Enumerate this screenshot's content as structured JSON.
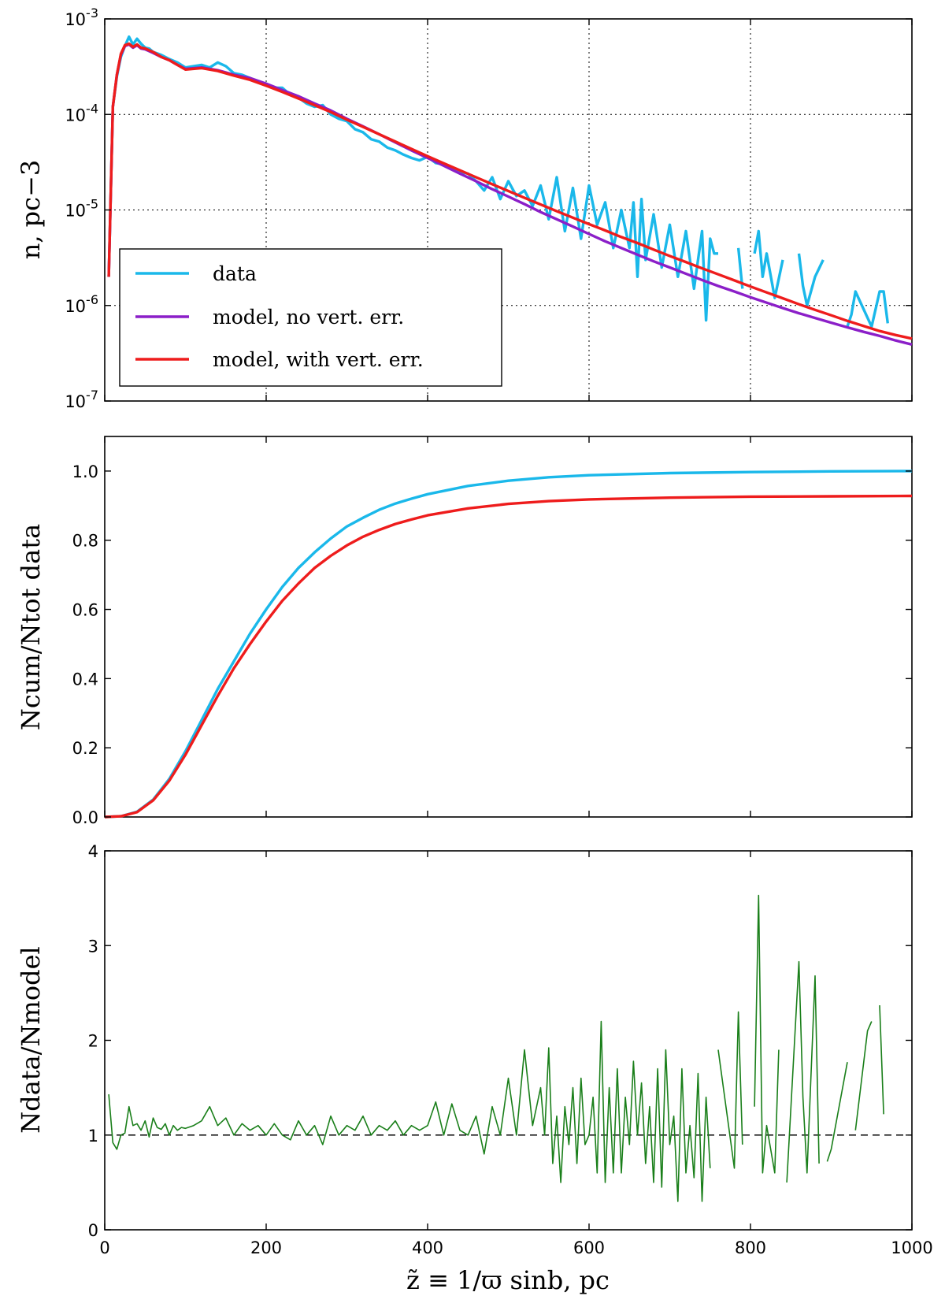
{
  "colors": {
    "data": "#1ab8ea",
    "model_no_err": "#8b1fc8",
    "model_with_err": "#ee1c1c",
    "ratio": "#1a7f1a",
    "reference": "#000000"
  },
  "shared_xlabel": "z̃ ≡ 1/ϖ sinb,  pc",
  "chart_data": [
    {
      "type": "line",
      "name": "density",
      "yscale": "log",
      "xlim": [
        0,
        1000
      ],
      "ylim": [
        1e-07,
        0.001
      ],
      "grid": true,
      "xticks": [
        0,
        200,
        400,
        600,
        800,
        1000
      ],
      "ytick_labels": [
        "10-3",
        "10-4",
        "10-5",
        "10-6",
        "10-7"
      ],
      "ytick_values": [
        0.001,
        0.0001,
        1e-05,
        1e-06,
        1e-07
      ],
      "ylabel": "n,  pc−3",
      "legend": {
        "location": "lower-left",
        "entries": [
          "data",
          "model,  no vert. err.",
          "model,  with vert. err."
        ]
      },
      "series": [
        {
          "name": "data",
          "x": [
            5,
            10,
            15,
            20,
            25,
            30,
            35,
            40,
            45,
            50,
            55,
            60,
            70,
            80,
            90,
            100,
            110,
            120,
            130,
            140,
            150,
            160,
            170,
            180,
            190,
            200,
            210,
            220,
            230,
            240,
            250,
            260,
            270,
            280,
            290,
            300,
            310,
            320,
            330,
            340,
            350,
            360,
            370,
            380,
            390,
            400,
            410,
            420,
            430,
            440,
            450,
            460,
            470,
            480,
            490,
            500,
            510,
            520,
            530,
            540,
            550,
            560,
            570,
            580,
            590,
            600,
            610,
            620,
            630,
            640,
            650,
            655,
            660,
            665,
            670,
            680,
            690,
            700,
            710,
            720,
            730,
            740,
            745,
            750,
            755,
            760,
            780,
            785,
            790,
            800,
            805,
            810,
            815,
            820,
            830,
            840,
            850,
            860,
            865,
            870,
            880,
            890,
            900,
            920,
            925,
            930,
            950,
            960,
            965,
            970
          ],
          "y": [
            2e-06,
            0.00012,
            0.00025,
            0.0004,
            0.00052,
            0.00065,
            0.00054,
            0.00062,
            0.00055,
            0.0005,
            0.00049,
            0.00045,
            0.00042,
            0.00038,
            0.00035,
            0.00031,
            0.00032,
            0.00033,
            0.00031,
            0.00035,
            0.00032,
            0.00027,
            0.00026,
            0.00024,
            0.00022,
            0.00021,
            0.00019,
            0.00019,
            0.00016,
            0.00015,
            0.00013,
            0.00012,
            0.000125,
            0.0001,
            9e-05,
            8.5e-05,
            7e-05,
            6.5e-05,
            5.5e-05,
            5.2e-05,
            4.5e-05,
            4.2e-05,
            3.8e-05,
            3.5e-05,
            3.3e-05,
            3.6e-05,
            3.1e-05,
            3e-05,
            2.8e-05,
            2.5e-05,
            2.4e-05,
            2e-05,
            1.6e-05,
            2.2e-05,
            1.3e-05,
            2e-05,
            1.4e-05,
            1.6e-05,
            1.1e-05,
            1.8e-05,
            8e-06,
            2.2e-05,
            6e-06,
            1.7e-05,
            5e-06,
            1.8e-05,
            7e-06,
            1.2e-05,
            4e-06,
            1e-05,
            4e-06,
            1.2e-05,
            2e-06,
            1.3e-05,
            3e-06,
            9e-06,
            2.5e-06,
            7e-06,
            2e-06,
            6e-06,
            1.5e-06,
            6e-06,
            7e-07,
            5e-06,
            3.5e-06,
            3.5e-06,
            null,
            4e-06,
            1.5e-06,
            null,
            3.5e-06,
            6e-06,
            2e-06,
            3.5e-06,
            1.2e-06,
            3e-06,
            null,
            3.5e-06,
            1.6e-06,
            1e-06,
            2e-06,
            3e-06,
            null,
            6e-07,
            8e-07,
            1.4e-06,
            6e-07,
            1.4e-06,
            1.4e-06,
            6.5e-07
          ]
        },
        {
          "name": "model, no vert. err.",
          "x": [
            5,
            10,
            15,
            20,
            25,
            30,
            35,
            40,
            45,
            50,
            60,
            70,
            80,
            90,
            100,
            120,
            140,
            160,
            180,
            200,
            220,
            240,
            260,
            280,
            300,
            320,
            340,
            360,
            380,
            400,
            420,
            440,
            460,
            480,
            500,
            520,
            540,
            560,
            580,
            600,
            620,
            640,
            660,
            680,
            700,
            720,
            740,
            760,
            780,
            800,
            820,
            840,
            860,
            880,
            900,
            920,
            940,
            960,
            980,
            1000
          ],
          "y": [
            2e-06,
            0.00012,
            0.00026,
            0.00042,
            0.00052,
            0.00054,
            0.0005,
            0.00053,
            0.00049,
            0.00048,
            0.00044,
            0.0004,
            0.00037,
            0.00033,
            0.0003,
            0.00031,
            0.00029,
            0.00026,
            0.00024,
            0.00021,
            0.00018,
            0.000155,
            0.00013,
            0.00011,
            9e-05,
            7.5e-05,
            6.2e-05,
            5.1e-05,
            4.2e-05,
            3.5e-05,
            2.9e-05,
            2.4e-05,
            2e-05,
            1.65e-05,
            1.38e-05,
            1.15e-05,
            9.5e-06,
            8e-06,
            6.7e-06,
            5.6e-06,
            4.7e-06,
            4e-06,
            3.4e-06,
            2.9e-06,
            2.5e-06,
            2.15e-06,
            1.85e-06,
            1.6e-06,
            1.4e-06,
            1.22e-06,
            1.07e-06,
            9.4e-07,
            8.3e-07,
            7.4e-07,
            6.6e-07,
            5.9e-07,
            5.3e-07,
            4.8e-07,
            4.3e-07,
            3.9e-07
          ]
        },
        {
          "name": "model, with vert. err.",
          "x": [
            5,
            10,
            15,
            20,
            25,
            30,
            35,
            40,
            45,
            50,
            60,
            70,
            80,
            90,
            100,
            120,
            140,
            160,
            180,
            200,
            220,
            240,
            260,
            280,
            300,
            320,
            340,
            360,
            380,
            400,
            420,
            440,
            460,
            480,
            500,
            520,
            540,
            560,
            580,
            600,
            620,
            640,
            660,
            680,
            700,
            720,
            740,
            760,
            780,
            800,
            820,
            840,
            860,
            880,
            900,
            920,
            940,
            960,
            980,
            1000
          ],
          "y": [
            2e-06,
            0.00012,
            0.00026,
            0.00043,
            0.00053,
            0.00055,
            0.00051,
            0.00054,
            0.0005,
            0.00049,
            0.00045,
            0.0004,
            0.00037,
            0.00033,
            0.000295,
            0.000305,
            0.000285,
            0.000255,
            0.00023,
            0.0002,
            0.000172,
            0.000147,
            0.000125,
            0.000106,
            8.8e-05,
            7.4e-05,
            6.2e-05,
            5.2e-05,
            4.35e-05,
            3.65e-05,
            3.08e-05,
            2.6e-05,
            2.2e-05,
            1.86e-05,
            1.58e-05,
            1.34e-05,
            1.14e-05,
            9.7e-06,
            8.3e-06,
            7.1e-06,
            6.1e-06,
            5.2e-06,
            4.5e-06,
            3.85e-06,
            3.3e-06,
            2.85e-06,
            2.45e-06,
            2.12e-06,
            1.83e-06,
            1.58e-06,
            1.37e-06,
            1.19e-06,
            1.03e-06,
            9e-07,
            7.9e-07,
            6.9e-07,
            6.1e-07,
            5.4e-07,
            4.9e-07,
            4.5e-07
          ]
        }
      ]
    },
    {
      "type": "line",
      "name": "cumulative",
      "yscale": "linear",
      "xlim": [
        0,
        1000
      ],
      "ylim": [
        0,
        1.1
      ],
      "grid": false,
      "xticks": [
        0,
        200,
        400,
        600,
        800,
        1000
      ],
      "ytick_labels": [
        "0.0",
        "0.2",
        "0.4",
        "0.6",
        "0.8",
        "1.0"
      ],
      "ytick_values": [
        0,
        0.2,
        0.4,
        0.6,
        0.8,
        1.0
      ],
      "ylabel": "Ncum/Ntot data",
      "series": [
        {
          "name": "data",
          "x": [
            0,
            20,
            40,
            60,
            80,
            100,
            120,
            140,
            160,
            180,
            200,
            220,
            240,
            260,
            280,
            300,
            320,
            340,
            360,
            380,
            400,
            450,
            500,
            550,
            600,
            700,
            800,
            900,
            1000
          ],
          "y": [
            0,
            0.002,
            0.015,
            0.05,
            0.11,
            0.19,
            0.28,
            0.37,
            0.45,
            0.53,
            0.6,
            0.665,
            0.72,
            0.765,
            0.805,
            0.84,
            0.865,
            0.888,
            0.906,
            0.92,
            0.933,
            0.957,
            0.972,
            0.982,
            0.988,
            0.994,
            0.997,
            0.999,
            1.0
          ]
        },
        {
          "name": "model, with vert. err.",
          "x": [
            0,
            20,
            40,
            60,
            80,
            100,
            120,
            140,
            160,
            180,
            200,
            220,
            240,
            260,
            280,
            300,
            320,
            340,
            360,
            380,
            400,
            450,
            500,
            550,
            600,
            700,
            800,
            900,
            1000
          ],
          "y": [
            0,
            0.002,
            0.014,
            0.048,
            0.105,
            0.18,
            0.265,
            0.35,
            0.43,
            0.5,
            0.565,
            0.625,
            0.675,
            0.72,
            0.755,
            0.785,
            0.81,
            0.83,
            0.847,
            0.86,
            0.872,
            0.892,
            0.905,
            0.913,
            0.918,
            0.923,
            0.926,
            0.927,
            0.928
          ]
        }
      ]
    },
    {
      "type": "line",
      "name": "ratio",
      "yscale": "linear",
      "xlim": [
        0,
        1000
      ],
      "ylim": [
        0,
        4
      ],
      "grid": false,
      "xticks": [
        0,
        200,
        400,
        600,
        800,
        1000
      ],
      "xtick_labels": [
        "0",
        "200",
        "400",
        "600",
        "800",
        "1000"
      ],
      "ytick_labels": [
        "0",
        "1",
        "2",
        "3",
        "4"
      ],
      "ytick_values": [
        0,
        1,
        2,
        3,
        4
      ],
      "ylabel": "Ndata/Nmodel",
      "xlabel": "z̃ ≡ 1/ϖ sinb,  pc",
      "reference_line": 1,
      "series": [
        {
          "name": "data/model",
          "x": [
            5,
            10,
            15,
            20,
            25,
            30,
            35,
            40,
            45,
            50,
            55,
            60,
            65,
            70,
            75,
            80,
            85,
            90,
            95,
            100,
            110,
            120,
            130,
            140,
            150,
            160,
            170,
            180,
            190,
            200,
            210,
            220,
            230,
            240,
            250,
            260,
            270,
            280,
            290,
            300,
            310,
            320,
            330,
            340,
            350,
            360,
            370,
            380,
            390,
            400,
            410,
            420,
            430,
            440,
            450,
            460,
            470,
            480,
            490,
            500,
            510,
            520,
            530,
            540,
            545,
            550,
            555,
            560,
            565,
            570,
            575,
            580,
            585,
            590,
            595,
            600,
            605,
            610,
            615,
            620,
            625,
            630,
            635,
            640,
            645,
            650,
            655,
            660,
            665,
            670,
            675,
            680,
            685,
            690,
            695,
            700,
            705,
            710,
            715,
            720,
            725,
            730,
            735,
            740,
            745,
            750,
            755,
            760,
            780,
            785,
            790,
            800,
            805,
            810,
            815,
            820,
            830,
            835,
            840,
            845,
            860,
            865,
            870,
            880,
            885,
            890,
            895,
            900,
            920,
            925,
            930,
            945,
            950,
            955,
            960,
            965,
            970
          ],
          "y": [
            1.43,
            0.92,
            0.85,
            1.0,
            1.02,
            1.3,
            1.1,
            1.12,
            1.05,
            1.15,
            0.98,
            1.18,
            1.08,
            1.06,
            1.12,
            1.0,
            1.1,
            1.05,
            1.08,
            1.07,
            1.1,
            1.15,
            1.3,
            1.1,
            1.18,
            1.0,
            1.12,
            1.05,
            1.1,
            1.0,
            1.12,
            1.0,
            0.95,
            1.15,
            1.0,
            1.1,
            0.9,
            1.2,
            1.0,
            1.1,
            1.05,
            1.2,
            1.0,
            1.1,
            1.05,
            1.15,
            1.0,
            1.1,
            1.05,
            1.1,
            1.35,
            1.0,
            1.33,
            1.05,
            1.0,
            1.2,
            0.8,
            1.3,
            1.0,
            1.6,
            1.0,
            1.9,
            1.1,
            1.5,
            1.0,
            1.92,
            0.7,
            1.2,
            0.5,
            1.3,
            0.9,
            1.5,
            0.7,
            1.6,
            0.9,
            1.0,
            1.4,
            0.6,
            2.2,
            0.5,
            1.5,
            0.6,
            1.7,
            0.6,
            1.4,
            0.9,
            1.78,
            1.0,
            1.55,
            0.7,
            1.3,
            0.5,
            1.7,
            0.45,
            1.9,
            0.9,
            1.2,
            0.3,
            1.7,
            0.6,
            1.1,
            0.55,
            1.65,
            0.3,
            1.4,
            0.65,
            null,
            1.9,
            0.65,
            2.3,
            0.9,
            null,
            1.3,
            3.53,
            0.6,
            1.1,
            0.6,
            1.9,
            null,
            0.5,
            2.83,
            1.4,
            0.6,
            2.68,
            0.7,
            null,
            0.72,
            0.85,
            1.77,
            null,
            1.05,
            2.1,
            2.2,
            null,
            2.37,
            1.22,
            null
          ]
        }
      ]
    }
  ]
}
